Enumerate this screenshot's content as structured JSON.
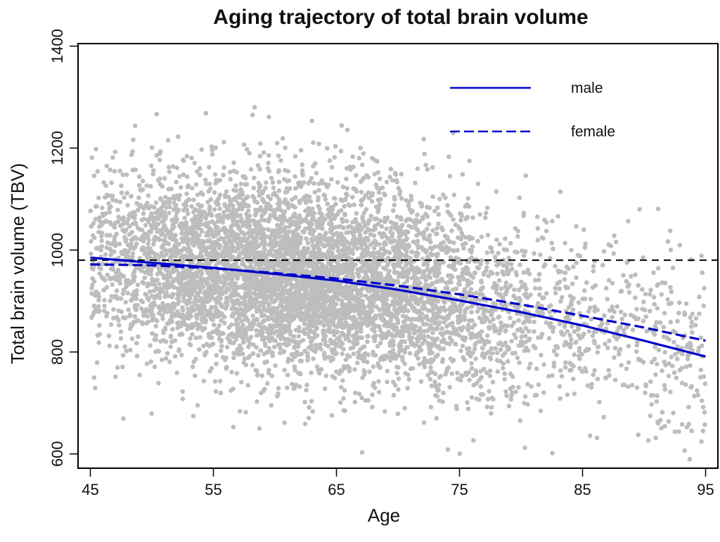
{
  "chart_data": {
    "type": "scatter",
    "title": "Aging trajectory of total brain volume",
    "xlabel": "Age",
    "ylabel": "Total brain volume (TBV)",
    "xlim": [
      44,
      96
    ],
    "ylim": [
      572,
      1405
    ],
    "xticks": [
      45,
      55,
      65,
      75,
      85,
      95
    ],
    "yticks": [
      600,
      800,
      1000,
      1200,
      1400
    ],
    "reference_line": {
      "y": 980,
      "style": "dashed",
      "color": "#000000"
    },
    "legend": {
      "position": "top-right",
      "entries": [
        "male",
        "female"
      ]
    },
    "point_color": "#bdbdbd",
    "scatter_model": {
      "n_points": 6500,
      "age_range": [
        45,
        95
      ],
      "mean_curve": "same as male series",
      "sd": 95,
      "seed": 12345
    },
    "series": [
      {
        "name": "male",
        "style": "solid",
        "color": "#0000cc",
        "x": [
          45,
          50,
          55,
          60,
          65,
          70,
          75,
          80,
          85,
          90,
          95
        ],
        "y": [
          985,
          975,
          965,
          953,
          940,
          922,
          901,
          878,
          852,
          822,
          791
        ]
      },
      {
        "name": "female",
        "style": "dashed",
        "color": "#0000cc",
        "x": [
          45,
          50,
          55,
          60,
          65,
          70,
          75,
          80,
          85,
          90,
          95
        ],
        "y": [
          972,
          970,
          964,
          955,
          944,
          930,
          913,
          893,
          871,
          848,
          822
        ]
      }
    ]
  }
}
